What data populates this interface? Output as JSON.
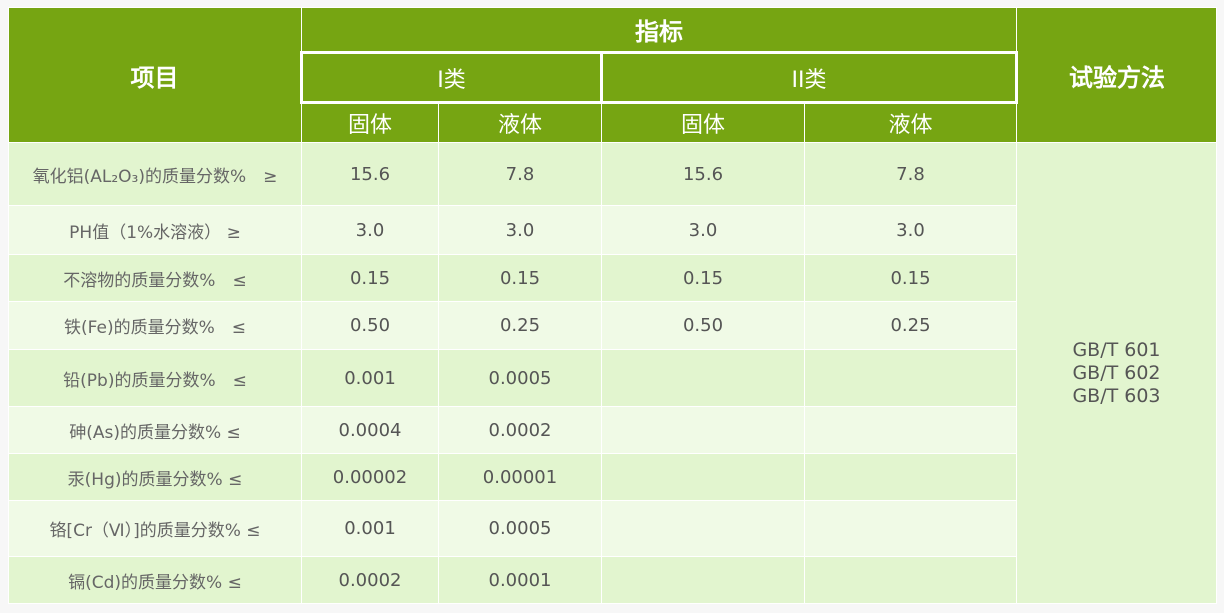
{
  "header": {
    "item": "项目",
    "indicator": "指标",
    "method": "试验方法",
    "class1": "I类",
    "class2": "II类",
    "solid": "固体",
    "liquid": "液体"
  },
  "rows": [
    {
      "label": "氧化铝(AL₂O₃)的质量分数%　≥",
      "v": [
        "15.6",
        "7.8",
        "15.6",
        "7.8"
      ]
    },
    {
      "label": "PH值（1%水溶液）  ≥",
      "v": [
        "3.0",
        "3.0",
        "3.0",
        "3.0"
      ]
    },
    {
      "label": "不溶物的质量分数%　≤",
      "v": [
        "0.15",
        "0.15",
        "0.15",
        "0.15"
      ]
    },
    {
      "label": "铁(Fe)的质量分数%　≤",
      "v": [
        "0.50",
        "0.25",
        "0.50",
        "0.25"
      ]
    },
    {
      "label": "铅(Pb)的质量分数%　≤",
      "v": [
        "0.001",
        "0.0005",
        "",
        ""
      ]
    },
    {
      "label": "砷(As)的质量分数%  ≤",
      "v": [
        "0.0004",
        "0.0002",
        "",
        ""
      ]
    },
    {
      "label": "汞(Hg)的质量分数%  ≤",
      "v": [
        "0.00002",
        "0.00001",
        "",
        ""
      ]
    },
    {
      "label": "铬[Cr（Ⅵ）]的质量分数%  ≤",
      "v": [
        "0.001",
        "0.0005",
        "",
        ""
      ]
    },
    {
      "label": "镉(Cd)的质量分数%  ≤",
      "v": [
        "0.0002",
        "0.0001",
        "",
        ""
      ]
    }
  ],
  "methods": [
    "GB/T 601",
    "GB/T 602",
    "GB/T 603"
  ]
}
